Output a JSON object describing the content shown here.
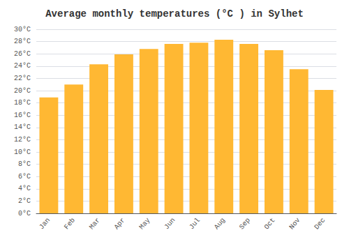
{
  "chart_data": {
    "type": "bar",
    "title": "Average monthly temperatures (°C ) in Sylhet",
    "categories": [
      "Jan",
      "Feb",
      "Mar",
      "Apr",
      "May",
      "Jun",
      "Jul",
      "Aug",
      "Sep",
      "Oct",
      "Nov",
      "Dec"
    ],
    "values": [
      18.9,
      21.0,
      24.3,
      25.9,
      26.8,
      27.6,
      27.8,
      28.3,
      27.6,
      26.6,
      23.5,
      20.1
    ],
    "color": "#FFB833",
    "ylim": [
      0,
      30
    ],
    "yticks": [
      {
        "value": 0,
        "label": "0°C"
      },
      {
        "value": 2,
        "label": "2°C"
      },
      {
        "value": 4,
        "label": "4°C"
      },
      {
        "value": 6,
        "label": "6°C"
      },
      {
        "value": 8,
        "label": "8°C"
      },
      {
        "value": 10,
        "label": "10°C"
      },
      {
        "value": 12,
        "label": "12°C"
      },
      {
        "value": 14,
        "label": "14°C"
      },
      {
        "value": 16,
        "label": "16°C"
      },
      {
        "value": 18,
        "label": "18°C"
      },
      {
        "value": 20,
        "label": "20°C"
      },
      {
        "value": 22,
        "label": "22°C"
      },
      {
        "value": 24,
        "label": "24°C"
      },
      {
        "value": 26,
        "label": "26°C"
      },
      {
        "value": 28,
        "label": "28°C"
      },
      {
        "value": 30,
        "label": "30°C"
      }
    ],
    "grid": true
  }
}
